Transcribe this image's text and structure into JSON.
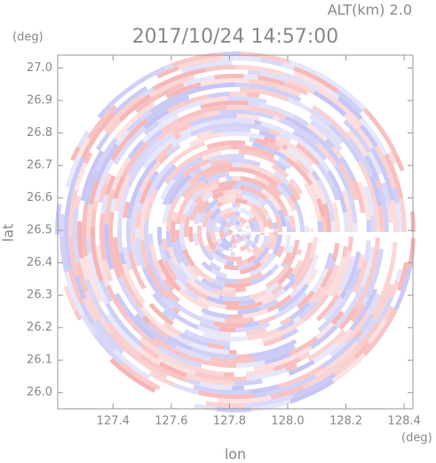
{
  "chart_data": {
    "type": "ppi",
    "title": "2017/10/24 14:57:00",
    "altitude_label": "ALT(km) 2.0",
    "x_label": "lon",
    "y_label": "lat",
    "x_unit": "(deg)",
    "y_unit": "(deg)",
    "xlim": [
      127.21,
      128.43
    ],
    "ylim": [
      25.95,
      27.04
    ],
    "xticks": [
      127.4,
      127.6,
      127.8,
      {
        "value": 128,
        "label": "128.0"
      },
      128.2,
      128.4
    ],
    "yticks": [
      {
        "value": 26,
        "label": "26.0"
      },
      26.1,
      26.2,
      26.3,
      26.4,
      26.5,
      26.6,
      26.7,
      26.8,
      26.9,
      {
        "value": 27,
        "label": "27.0"
      }
    ],
    "colors": [
      "#f7b4b4",
      "#c4c4f5"
    ]
  }
}
